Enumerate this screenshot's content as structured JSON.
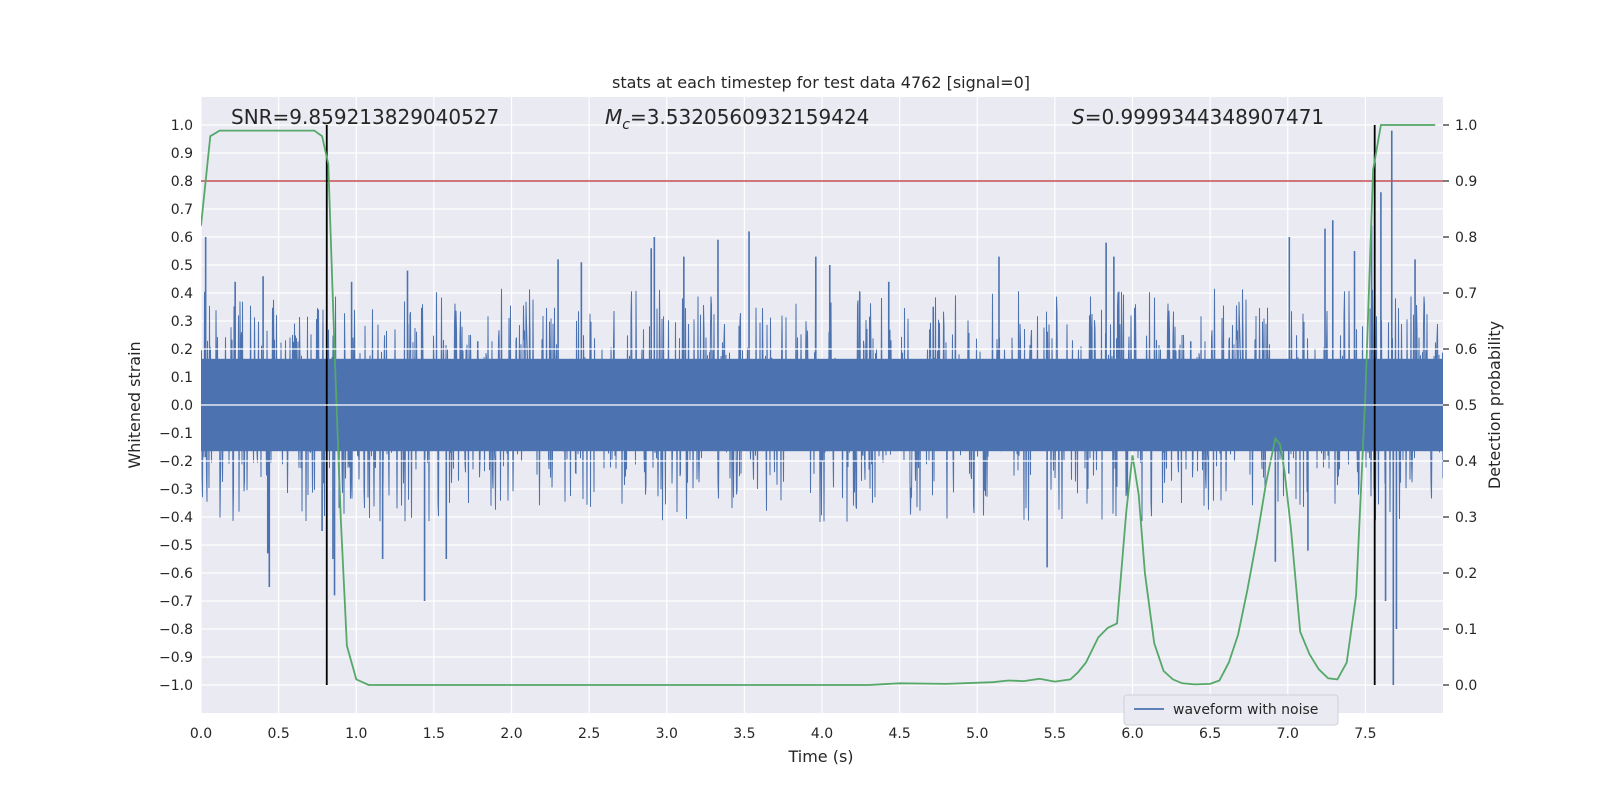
{
  "chart_data": {
    "type": "line",
    "title": "stats at each timestep for test data 4762 [signal=0]",
    "xlabel": "Time (s)",
    "ylabel": "Whitened strain",
    "ylabel_right": "Detection probability",
    "xlim": [
      0.0,
      8.0
    ],
    "ylim": [
      -1.1,
      1.1
    ],
    "ylim_right": [
      -0.05,
      1.05
    ],
    "xticks": [
      "0.0",
      "0.5",
      "1.0",
      "1.5",
      "2.0",
      "2.5",
      "3.0",
      "3.5",
      "4.0",
      "4.5",
      "5.0",
      "5.5",
      "6.0",
      "6.5",
      "7.0",
      "7.5"
    ],
    "yticks": [
      "-1.0",
      "-0.9",
      "-0.8",
      "-0.7",
      "-0.6",
      "-0.5",
      "-0.4",
      "-0.3",
      "-0.2",
      "-0.1",
      "0.0",
      "0.1",
      "0.2",
      "0.3",
      "0.4",
      "0.5",
      "0.6",
      "0.7",
      "0.8",
      "0.9",
      "1.0"
    ],
    "yticks_right": [
      "0.0",
      "0.1",
      "0.2",
      "0.3",
      "0.4",
      "0.5",
      "0.6",
      "0.7",
      "0.8",
      "0.9",
      "1.0"
    ],
    "grid": true,
    "legend": {
      "placement": "lower-right",
      "entries": [
        "waveform with noise"
      ]
    },
    "annotations": {
      "snr": "SNR=9.859213829040527",
      "mc_symbol": "M",
      "mc_sub": "c",
      "mc_value": "=3.5320560932159424",
      "s_symbol": "S",
      "s_value": "=0.9999344348907471"
    },
    "threshold_right": 0.9,
    "vlines": [
      0.81,
      7.56
    ],
    "colors": {
      "waveform": "#4c72b0",
      "probability": "#55a868",
      "threshold": "#c44e52",
      "vline": "#000000",
      "background": "#eaeaf2",
      "grid": "#ffffff"
    },
    "waveform_series": {
      "name": "waveform with noise",
      "description_stats": {
        "core_amplitude": 0.22,
        "typical_peak": 0.4,
        "max_peak": 1.0
      },
      "spikes": [
        [
          0.03,
          0.6
        ],
        [
          0.22,
          0.44
        ],
        [
          0.4,
          0.46
        ],
        [
          0.43,
          -0.53
        ],
        [
          0.44,
          -0.65
        ],
        [
          0.78,
          -0.45
        ],
        [
          0.85,
          -0.55
        ],
        [
          0.86,
          -0.68
        ],
        [
          0.97,
          0.44
        ],
        [
          1.17,
          -0.55
        ],
        [
          1.33,
          0.48
        ],
        [
          1.44,
          -0.7
        ],
        [
          1.58,
          -0.55
        ],
        [
          2.3,
          0.52
        ],
        [
          2.45,
          0.51
        ],
        [
          2.9,
          0.56
        ],
        [
          2.92,
          0.6
        ],
        [
          3.11,
          0.53
        ],
        [
          3.33,
          0.59
        ],
        [
          3.53,
          0.62
        ],
        [
          3.96,
          0.53
        ],
        [
          4.05,
          0.5
        ],
        [
          4.43,
          0.44
        ],
        [
          5.14,
          0.53
        ],
        [
          5.45,
          -0.58
        ],
        [
          5.83,
          0.58
        ],
        [
          5.88,
          0.53
        ],
        [
          6.92,
          -0.56
        ],
        [
          7.01,
          0.6
        ],
        [
          7.13,
          -0.52
        ],
        [
          7.24,
          0.63
        ],
        [
          7.29,
          0.66
        ],
        [
          7.43,
          0.55
        ],
        [
          7.54,
          0.64
        ],
        [
          7.6,
          0.76
        ],
        [
          7.63,
          -0.7
        ],
        [
          7.67,
          0.98
        ],
        [
          7.68,
          -1.0
        ],
        [
          7.7,
          -0.8
        ],
        [
          7.82,
          0.52
        ]
      ]
    },
    "probability_series": {
      "name": "",
      "x": [
        0.0,
        0.06,
        0.12,
        0.2,
        0.4,
        0.6,
        0.73,
        0.78,
        0.82,
        0.86,
        0.9,
        0.94,
        1.0,
        1.08,
        1.2,
        1.5,
        2.0,
        2.2,
        2.5,
        3.0,
        3.5,
        4.0,
        4.3,
        4.5,
        4.8,
        5.1,
        5.2,
        5.3,
        5.4,
        5.5,
        5.6,
        5.65,
        5.7,
        5.78,
        5.84,
        5.9,
        5.96,
        6.0,
        6.04,
        6.08,
        6.14,
        6.2,
        6.26,
        6.32,
        6.4,
        6.5,
        6.56,
        6.62,
        6.68,
        6.74,
        6.8,
        6.86,
        6.92,
        6.95,
        6.98,
        7.02,
        7.08,
        7.14,
        7.2,
        7.26,
        7.32,
        7.38,
        7.44,
        7.5,
        7.55,
        7.6,
        7.65,
        7.7,
        7.8,
        7.95
      ],
      "values": [
        0.82,
        0.98,
        0.99,
        0.99,
        0.99,
        0.99,
        0.99,
        0.98,
        0.93,
        0.6,
        0.3,
        0.07,
        0.01,
        0.0,
        0.0,
        0.0,
        0.0,
        0.0,
        0.0,
        0.0,
        0.0,
        0.0,
        0.0,
        0.003,
        0.002,
        0.005,
        0.008,
        0.007,
        0.011,
        0.006,
        0.01,
        0.023,
        0.04,
        0.085,
        0.102,
        0.11,
        0.31,
        0.41,
        0.34,
        0.2,
        0.075,
        0.025,
        0.01,
        0.003,
        0.001,
        0.002,
        0.008,
        0.04,
        0.09,
        0.17,
        0.26,
        0.36,
        0.44,
        0.43,
        0.38,
        0.28,
        0.095,
        0.055,
        0.028,
        0.012,
        0.01,
        0.04,
        0.16,
        0.52,
        0.92,
        1.0,
        1.0,
        1.0,
        1.0,
        1.0
      ]
    }
  }
}
